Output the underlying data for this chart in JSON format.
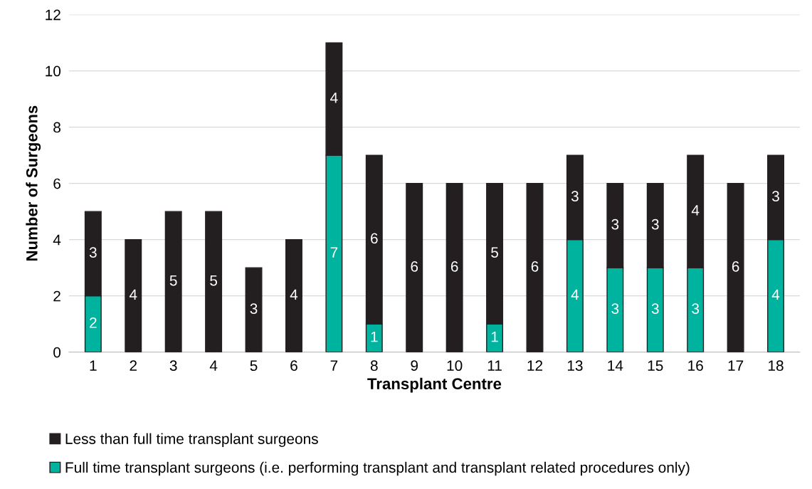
{
  "chart_data": {
    "type": "bar",
    "stacked": true,
    "xlabel": "Transplant Centre",
    "ylabel": "Number of Surgeons",
    "categories": [
      "1",
      "2",
      "3",
      "4",
      "5",
      "6",
      "7",
      "8",
      "9",
      "10",
      "11",
      "12",
      "13",
      "14",
      "15",
      "16",
      "17",
      "18"
    ],
    "series": [
      {
        "name": "Full time transplant surgeons (i.e. performing transplant and transplant related procedures only)",
        "color": "#00b39e",
        "values": [
          2,
          0,
          0,
          0,
          0,
          0,
          7,
          1,
          0,
          0,
          1,
          0,
          4,
          3,
          3,
          3,
          0,
          4
        ],
        "value_labels": [
          "2",
          null,
          null,
          null,
          null,
          null,
          "7",
          "1",
          null,
          null,
          "1",
          null,
          "4",
          "3",
          "3",
          "3",
          null,
          "4"
        ]
      },
      {
        "name": "Less than full time transplant surgeons",
        "color": "#231f20",
        "values": [
          3,
          4,
          5,
          5,
          3,
          4,
          4,
          6,
          6,
          6,
          5,
          6,
          3,
          3,
          3,
          4,
          6,
          3
        ],
        "value_labels": [
          "3",
          "4",
          "5",
          "5",
          "3",
          "4",
          "4",
          "6",
          "6",
          "6",
          "5",
          "6",
          "3",
          "3",
          "3",
          "4",
          "6",
          "3"
        ]
      }
    ],
    "ylim": [
      0,
      12
    ],
    "yticks": [
      0,
      2,
      4,
      6,
      8,
      10,
      12
    ],
    "grid": "y",
    "legend": "bottom"
  }
}
